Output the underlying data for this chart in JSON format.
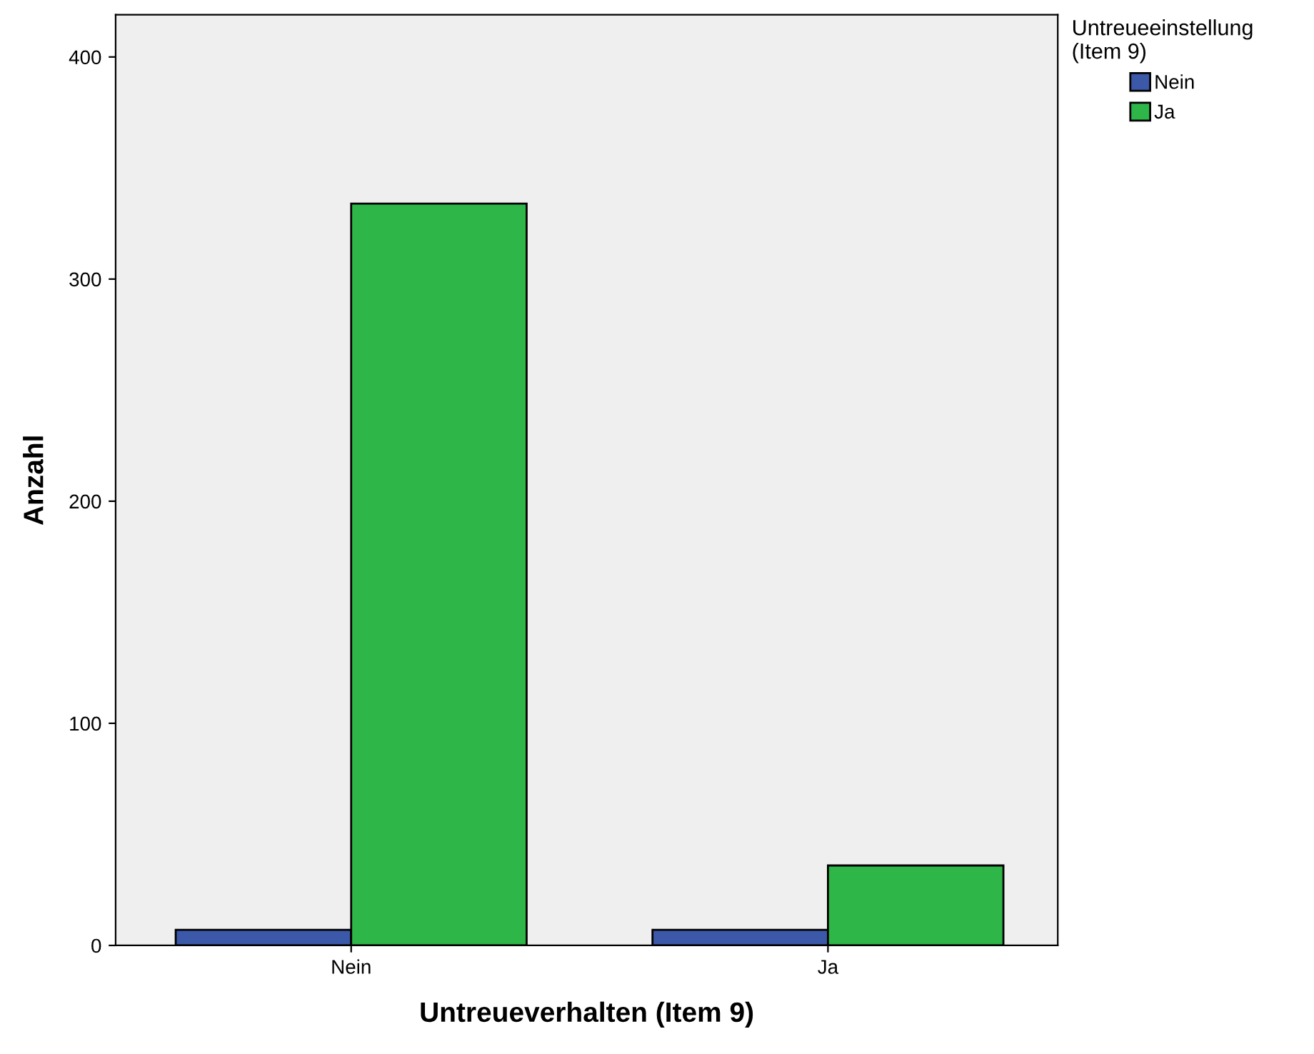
{
  "chart_data": {
    "type": "bar",
    "xlabel": "Untreueverhalten (Item 9)",
    "ylabel": "Anzahl",
    "legend_title": "Untreueeinstellung\n(Item 9)",
    "categories": [
      "Nein",
      "Ja"
    ],
    "series": [
      {
        "name": "Nein",
        "color": "#3c58a8",
        "values": [
          7,
          7
        ]
      },
      {
        "name": "Ja",
        "color": "#2eb648",
        "values": [
          334,
          36
        ]
      }
    ],
    "ylim": [
      0,
      419
    ],
    "yticks": [
      0,
      100,
      200,
      300,
      400
    ],
    "grid": false,
    "legend": "top right"
  }
}
